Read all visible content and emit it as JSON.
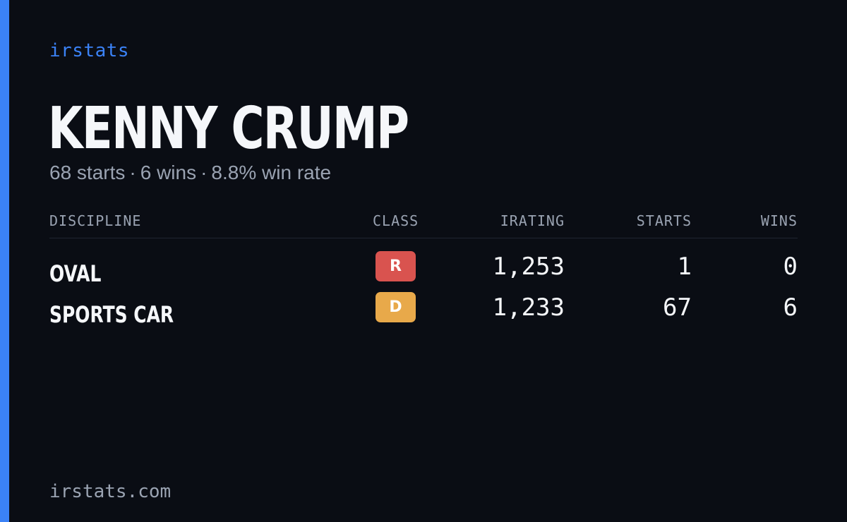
{
  "brand": "irstats",
  "driver": {
    "name": "KENNY CRUMP",
    "summary": {
      "starts": "68 starts",
      "wins": "6 wins",
      "win_rate": "8.8% win rate",
      "separator": "·"
    }
  },
  "table": {
    "headers": {
      "discipline": "DISCIPLINE",
      "class": "CLASS",
      "irating": "IRATING",
      "starts": "STARTS",
      "wins": "WINS"
    },
    "rows": [
      {
        "discipline": "OVAL",
        "class": "R",
        "class_color": "#d9534f",
        "irating": "1,253",
        "starts": "1",
        "wins": "0"
      },
      {
        "discipline": "SPORTS CAR",
        "class": "D",
        "class_color": "#e8a94a",
        "irating": "1,233",
        "starts": "67",
        "wins": "6"
      }
    ]
  },
  "footer": {
    "url": "irstats.com"
  },
  "colors": {
    "accent": "#3b82f6",
    "background": "#0a0d14",
    "text_primary": "#f5f7fa",
    "text_muted": "#9aa3b2"
  }
}
